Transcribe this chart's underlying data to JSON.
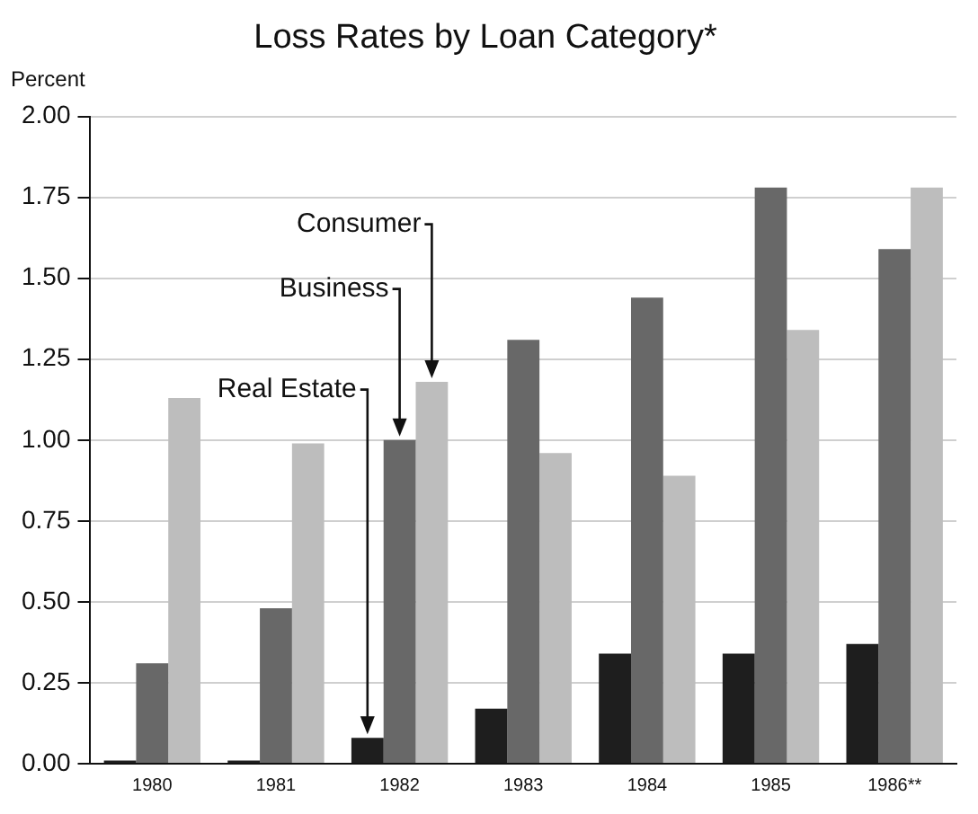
{
  "chart_data": {
    "type": "bar",
    "title": "Loss Rates by Loan Category*",
    "ylabel": "Percent",
    "categories": [
      "1980",
      "1981",
      "1982",
      "1983",
      "1984",
      "1985",
      "1986**"
    ],
    "series": [
      {
        "name": "Real Estate",
        "color": "#1e1e1e",
        "values": [
          0.01,
          0.01,
          0.08,
          0.17,
          0.34,
          0.34,
          0.37
        ]
      },
      {
        "name": "Business",
        "color": "#686868",
        "values": [
          0.31,
          0.48,
          1.0,
          1.31,
          1.44,
          1.78,
          1.59
        ]
      },
      {
        "name": "Consumer",
        "color": "#bdbdbd",
        "values": [
          1.13,
          0.99,
          1.18,
          0.96,
          0.89,
          1.34,
          1.78
        ]
      }
    ],
    "ylim": [
      0,
      2
    ],
    "yticks": [
      {
        "value": 0,
        "label": "0.00"
      },
      {
        "value": 0.25,
        "label": "0.25"
      },
      {
        "value": 0.5,
        "label": "0.50"
      },
      {
        "value": 0.75,
        "label": "0.75"
      },
      {
        "value": 1,
        "label": "1.00"
      },
      {
        "value": 1.25,
        "label": "1.25"
      },
      {
        "value": 1.5,
        "label": "1.50"
      },
      {
        "value": 1.75,
        "label": "1.75"
      },
      {
        "value": 2,
        "label": "2.00"
      }
    ],
    "grid": "y",
    "legend": false
  }
}
